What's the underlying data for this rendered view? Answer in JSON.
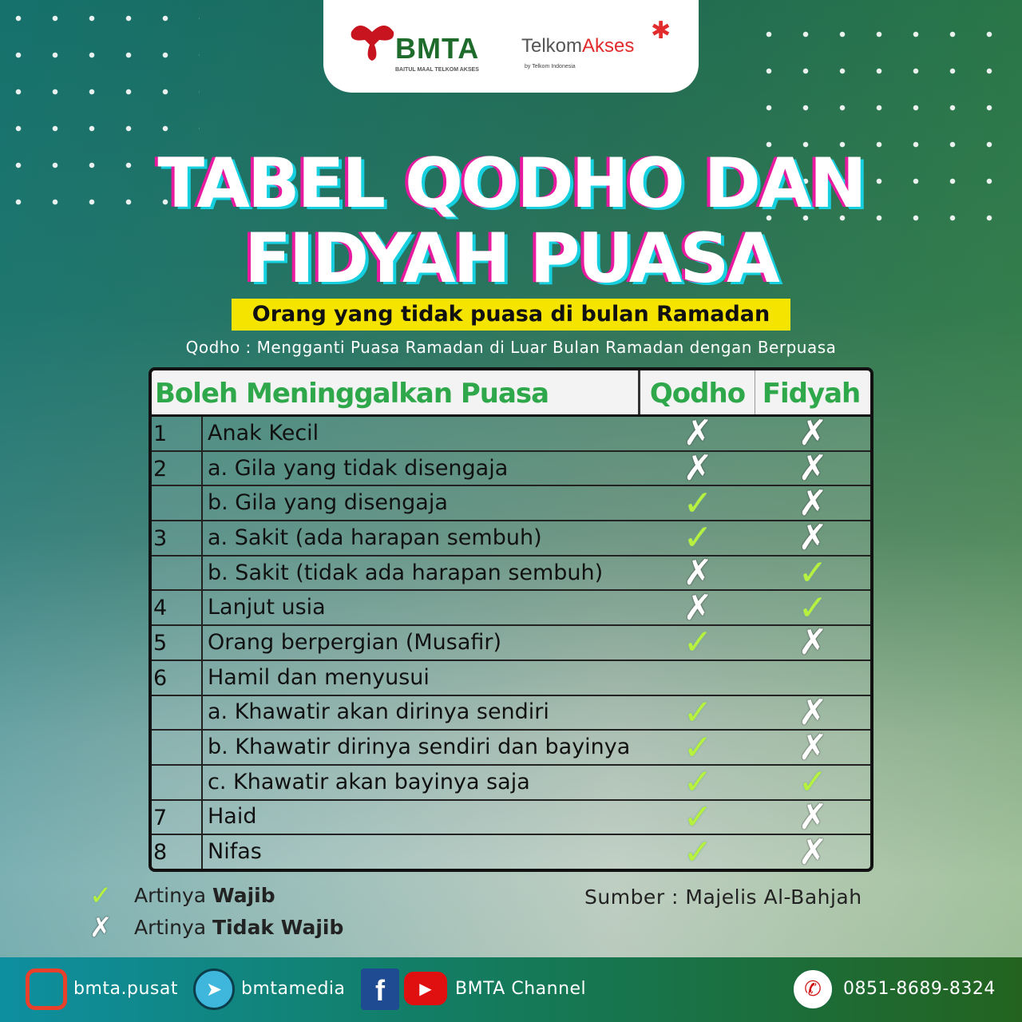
{
  "logos": {
    "bmta": "BMTA",
    "bmta_sub": "BAITUL MAAL TELKOM AKSES",
    "telkom_a": "Telkom",
    "telkom_b": "Akses",
    "telkom_sub": "by Telkom Indonesia"
  },
  "title": {
    "line1": "TABEL QODHO DAN",
    "line2": "FIDYAH PUASA"
  },
  "subtitle": "Orang yang tidak puasa di bulan Ramadan",
  "definition": "Qodho : Mengganti Puasa Ramadan di Luar Bulan Ramadan dengan Berpuasa",
  "table": {
    "headers": [
      "Boleh Meninggalkan Puasa",
      "Qodho",
      "Fidyah"
    ],
    "rows": [
      {
        "no": "1",
        "label": "Anak Kecil",
        "qodho": "✗",
        "fidyah": "✗"
      },
      {
        "no": "2",
        "label": "a. Gila yang tidak disengaja",
        "qodho": "✗",
        "fidyah": "✗"
      },
      {
        "no": "",
        "label": "b. Gila yang disengaja",
        "qodho": "✓",
        "fidyah": "✗"
      },
      {
        "no": "3",
        "label": "a. Sakit (ada harapan sembuh)",
        "qodho": "✓",
        "fidyah": "✗"
      },
      {
        "no": "",
        "label": "b. Sakit (tidak ada harapan sembuh)",
        "qodho": "✗",
        "fidyah": "✓"
      },
      {
        "no": "4",
        "label": "Lanjut usia",
        "qodho": "✗",
        "fidyah": "✓"
      },
      {
        "no": "5",
        "label": "Orang berpergian (Musafir)",
        "qodho": "✓",
        "fidyah": "✗"
      },
      {
        "no": "6",
        "label": "Hamil dan menyusui",
        "qodho": "",
        "fidyah": ""
      },
      {
        "no": "",
        "label": "a. Khawatir akan dirinya sendiri",
        "qodho": "✓",
        "fidyah": "✗"
      },
      {
        "no": "",
        "label": "b. Khawatir dirinya sendiri dan bayinya",
        "qodho": "✓",
        "fidyah": "✗"
      },
      {
        "no": "",
        "label": "c. Khawatir akan bayinya saja",
        "qodho": "✓",
        "fidyah": "✓"
      },
      {
        "no": "7",
        "label": "Haid",
        "qodho": "✓",
        "fidyah": "✗"
      },
      {
        "no": "8",
        "label": "Nifas",
        "qodho": "✓",
        "fidyah": "✗"
      }
    ]
  },
  "legend": {
    "check_icon": "✓",
    "cross_icon": "✗",
    "wajib_prefix": "Artinya ",
    "wajib": "Wajib",
    "tidak_prefix": "Artinya ",
    "tidak": "Tidak Wajib"
  },
  "source": "Sumber : Majelis Al-Bahjah",
  "footer": {
    "instagram": "bmta.pusat",
    "telegram": "bmtamedia",
    "youtube": "BMTA Channel",
    "phone": "0851-8689-8324"
  },
  "colors": {
    "title_shadow_magenta": "#e81aa0",
    "title_shadow_cyan": "#16d0e0",
    "highlight": "#f5e400",
    "header_green": "#2ea84a",
    "check": "#b8f040"
  }
}
